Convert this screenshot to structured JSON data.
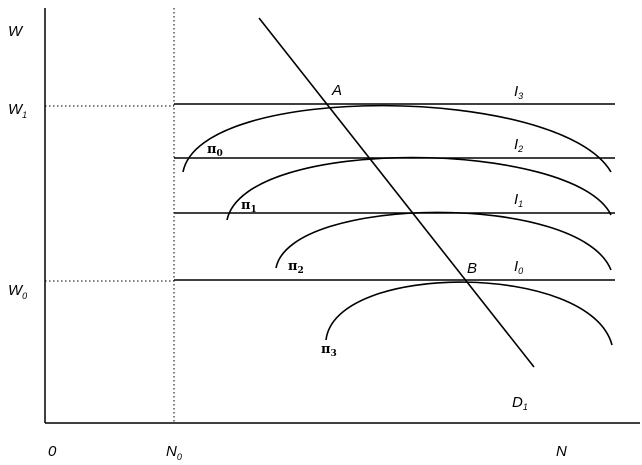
{
  "axis_labels": {
    "y": "W",
    "origin": "0",
    "x": "N"
  },
  "levels": [
    {
      "main": "W",
      "sub": "1"
    },
    {
      "main": "W",
      "sub": "0"
    },
    {
      "main": "N",
      "sub": "0"
    }
  ],
  "points": [
    "A",
    "B"
  ],
  "isoquants": [
    {
      "main": "I",
      "sub": "3"
    },
    {
      "main": "I",
      "sub": "2"
    },
    {
      "main": "I",
      "sub": "1"
    },
    {
      "main": "I",
      "sub": "0"
    }
  ],
  "demand": {
    "main": "D",
    "sub": "1"
  },
  "profit_curves": [
    {
      "main": "π",
      "sub": "0"
    },
    {
      "main": "π",
      "sub": "1"
    },
    {
      "main": "π",
      "sub": "2"
    },
    {
      "main": "π",
      "sub": "3"
    }
  ]
}
